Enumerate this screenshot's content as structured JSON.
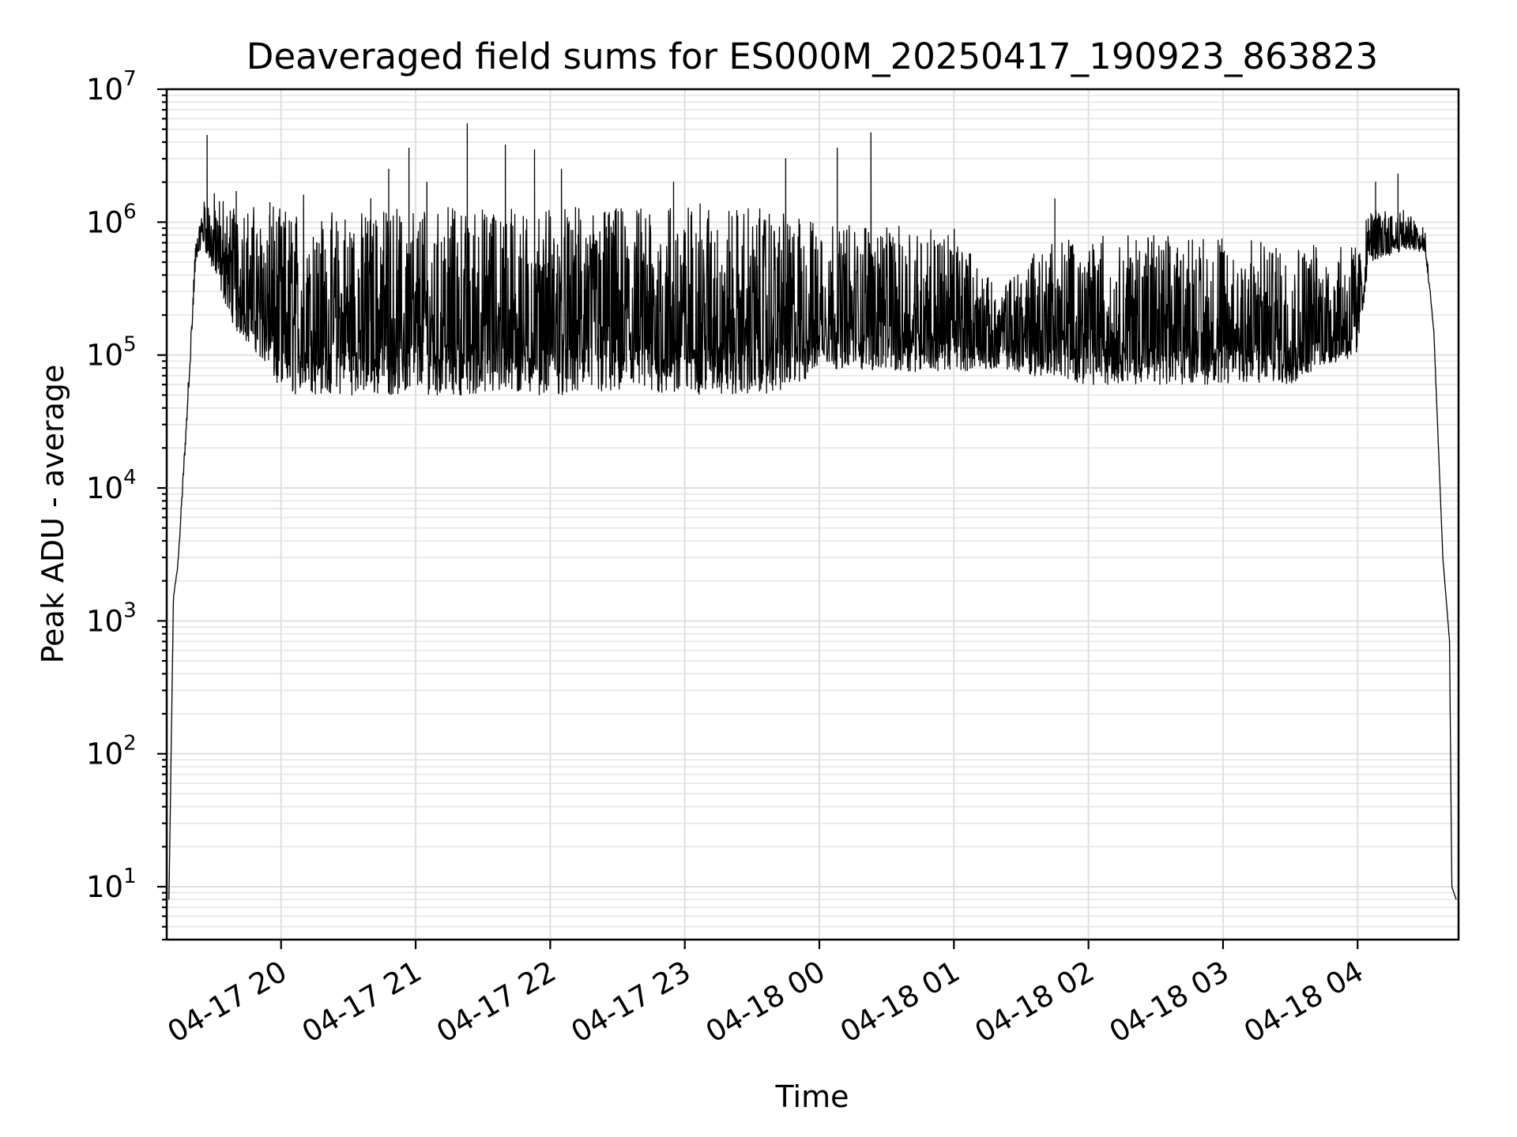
{
  "chart_data": {
    "type": "line",
    "title": "Deaveraged field sums for ES000M_20250417_190923_863823",
    "xlabel": "Time",
    "ylabel": "Peak ADU - average",
    "yscale": "log",
    "ylim": [
      4,
      10000000
    ],
    "xlim": [
      "2025-04-17 19:09",
      "2025-04-18 04:45"
    ],
    "grid": true,
    "x_ticks": [
      {
        "time": "2025-04-17 20:00",
        "label": "04-17 20"
      },
      {
        "time": "2025-04-17 21:00",
        "label": "04-17 21"
      },
      {
        "time": "2025-04-17 22:00",
        "label": "04-17 22"
      },
      {
        "time": "2025-04-17 23:00",
        "label": "04-17 23"
      },
      {
        "time": "2025-04-18 00:00",
        "label": "04-18 00"
      },
      {
        "time": "2025-04-18 01:00",
        "label": "04-18 01"
      },
      {
        "time": "2025-04-18 02:00",
        "label": "04-18 02"
      },
      {
        "time": "2025-04-18 03:00",
        "label": "04-18 03"
      },
      {
        "time": "2025-04-18 04:00",
        "label": "04-18 04"
      }
    ],
    "y_ticks": [
      {
        "value": 10,
        "base": "10",
        "exp": "1"
      },
      {
        "value": 100,
        "base": "10",
        "exp": "2"
      },
      {
        "value": 1000,
        "base": "10",
        "exp": "3"
      },
      {
        "value": 10000,
        "base": "10",
        "exp": "4"
      },
      {
        "value": 100000,
        "base": "10",
        "exp": "5"
      },
      {
        "value": 1000000,
        "base": "10",
        "exp": "6"
      },
      {
        "value": 10000000,
        "base": "10",
        "exp": "7"
      }
    ],
    "series": [
      {
        "color": "#000000",
        "envelope": [
          {
            "time": "2025-04-17 19:10",
            "low": 8,
            "high": 8
          },
          {
            "time": "2025-04-17 19:12",
            "low": 1500,
            "high": 1500
          },
          {
            "time": "2025-04-17 19:14",
            "low": 2500,
            "high": 2800
          },
          {
            "time": "2025-04-17 19:18",
            "low": 30000,
            "high": 40000
          },
          {
            "time": "2025-04-17 19:22",
            "low": 500000,
            "high": 800000
          },
          {
            "time": "2025-04-17 19:25",
            "low": 700000,
            "high": 1500000
          },
          {
            "time": "2025-04-17 19:30",
            "low": 400000,
            "high": 1700000
          },
          {
            "time": "2025-04-17 19:40",
            "low": 150000,
            "high": 1400000
          },
          {
            "time": "2025-04-17 19:50",
            "low": 100000,
            "high": 1300000
          },
          {
            "time": "2025-04-17 20:00",
            "low": 50000,
            "high": 1300000
          },
          {
            "time": "2025-04-17 20:30",
            "low": 50000,
            "high": 1200000
          },
          {
            "time": "2025-04-17 21:00",
            "low": 50000,
            "high": 1300000
          },
          {
            "time": "2025-04-17 21:30",
            "low": 50000,
            "high": 1300000
          },
          {
            "time": "2025-04-17 22:00",
            "low": 50000,
            "high": 1300000
          },
          {
            "time": "2025-04-17 22:30",
            "low": 50000,
            "high": 1300000
          },
          {
            "time": "2025-04-17 23:00",
            "low": 50000,
            "high": 1400000
          },
          {
            "time": "2025-04-17 23:30",
            "low": 50000,
            "high": 1300000
          },
          {
            "time": "2025-04-17 23:50",
            "low": 55000,
            "high": 1100000
          },
          {
            "time": "2025-04-18 00:00",
            "low": 80000,
            "high": 1000000
          },
          {
            "time": "2025-04-18 00:30",
            "low": 75000,
            "high": 950000
          },
          {
            "time": "2025-04-18 01:00",
            "low": 75000,
            "high": 900000
          },
          {
            "time": "2025-04-18 01:20",
            "low": 80000,
            "high": 300000
          },
          {
            "time": "2025-04-18 01:35",
            "low": 70000,
            "high": 700000
          },
          {
            "time": "2025-04-18 02:00",
            "low": 60000,
            "high": 800000
          },
          {
            "time": "2025-04-18 02:30",
            "low": 60000,
            "high": 800000
          },
          {
            "time": "2025-04-18 03:00",
            "low": 60000,
            "high": 750000
          },
          {
            "time": "2025-04-18 03:30",
            "low": 60000,
            "high": 700000
          },
          {
            "time": "2025-04-18 04:00",
            "low": 100000,
            "high": 650000
          },
          {
            "time": "2025-04-18 04:05",
            "low": 500000,
            "high": 1200000
          },
          {
            "time": "2025-04-18 04:20",
            "low": 600000,
            "high": 1300000
          },
          {
            "time": "2025-04-18 04:30",
            "low": 600000,
            "high": 900000
          },
          {
            "time": "2025-04-18 04:34",
            "low": 150000,
            "high": 150000
          },
          {
            "time": "2025-04-18 04:38",
            "low": 3000,
            "high": 3000
          },
          {
            "time": "2025-04-18 04:41",
            "low": 700,
            "high": 700
          },
          {
            "time": "2025-04-18 04:42",
            "low": 10,
            "high": 10
          },
          {
            "time": "2025-04-18 04:44",
            "low": 8,
            "high": 8
          }
        ],
        "peaks": [
          {
            "time": "2025-04-17 19:27",
            "value": 4500000
          },
          {
            "time": "2025-04-17 19:40",
            "value": 1700000
          },
          {
            "time": "2025-04-17 19:55",
            "value": 1400000
          },
          {
            "time": "2025-04-17 20:10",
            "value": 1600000
          },
          {
            "time": "2025-04-17 20:40",
            "value": 1500000
          },
          {
            "time": "2025-04-17 20:48",
            "value": 2500000
          },
          {
            "time": "2025-04-17 20:57",
            "value": 3600000
          },
          {
            "time": "2025-04-17 21:05",
            "value": 2000000
          },
          {
            "time": "2025-04-17 21:23",
            "value": 5500000
          },
          {
            "time": "2025-04-17 21:40",
            "value": 3800000
          },
          {
            "time": "2025-04-17 21:53",
            "value": 3500000
          },
          {
            "time": "2025-04-17 22:05",
            "value": 2500000
          },
          {
            "time": "2025-04-17 22:55",
            "value": 2000000
          },
          {
            "time": "2025-04-17 23:45",
            "value": 3000000
          },
          {
            "time": "2025-04-18 00:08",
            "value": 3600000
          },
          {
            "time": "2025-04-18 00:23",
            "value": 4700000
          },
          {
            "time": "2025-04-18 01:45",
            "value": 1500000
          },
          {
            "time": "2025-04-18 04:08",
            "value": 2000000
          },
          {
            "time": "2025-04-18 04:18",
            "value": 2300000
          }
        ]
      }
    ]
  }
}
